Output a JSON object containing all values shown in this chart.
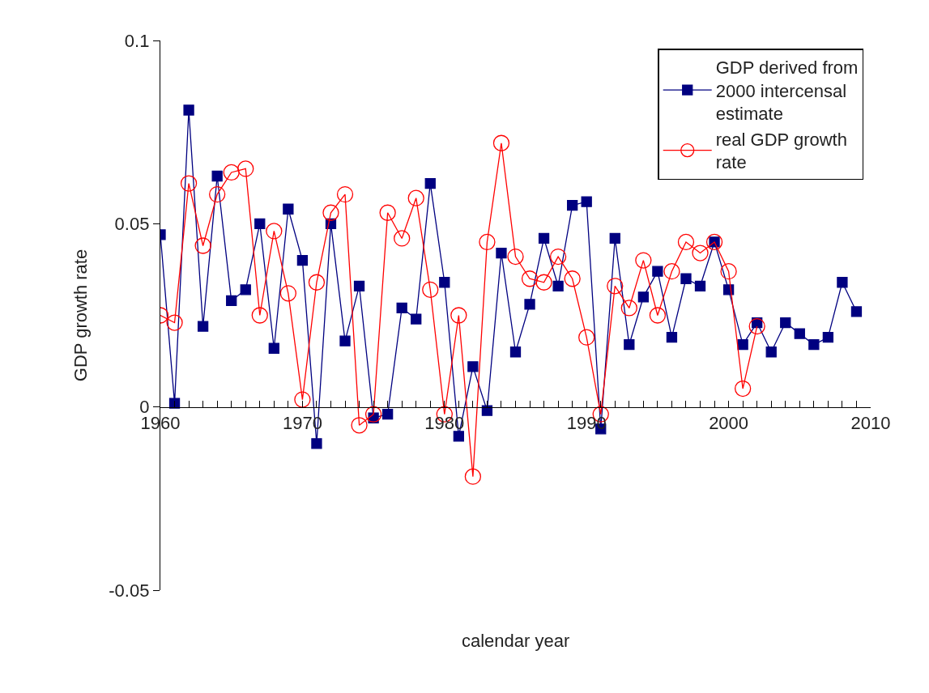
{
  "chart_data": {
    "type": "line",
    "xlabel": "calendar year",
    "ylabel": "GDP growth rate",
    "xlim": [
      1960,
      2010
    ],
    "ylim": [
      -0.05,
      0.1
    ],
    "xticks": [
      1960,
      {
        "value": 1961,
        "label": null
      },
      {
        "value": 1962,
        "label": null
      },
      {
        "value": 1963,
        "label": null
      },
      {
        "value": 1964,
        "label": null
      },
      {
        "value": 1965,
        "label": null
      },
      {
        "value": 1966,
        "label": null
      },
      {
        "value": 1967,
        "label": null
      },
      {
        "value": 1968,
        "label": null
      },
      {
        "value": 1969,
        "label": null
      },
      1970,
      {
        "value": 1971,
        "label": null
      },
      {
        "value": 1972,
        "label": null
      },
      {
        "value": 1973,
        "label": null
      },
      {
        "value": 1974,
        "label": null
      },
      {
        "value": 1975,
        "label": null
      },
      {
        "value": 1976,
        "label": null
      },
      {
        "value": 1977,
        "label": null
      },
      {
        "value": 1978,
        "label": null
      },
      {
        "value": 1979,
        "label": null
      },
      1980,
      {
        "value": 1981,
        "label": null
      },
      {
        "value": 1982,
        "label": null
      },
      {
        "value": 1983,
        "label": null
      },
      {
        "value": 1984,
        "label": null
      },
      {
        "value": 1985,
        "label": null
      },
      {
        "value": 1986,
        "label": null
      },
      {
        "value": 1987,
        "label": null
      },
      {
        "value": 1988,
        "label": null
      },
      {
        "value": 1989,
        "label": null
      },
      1990,
      {
        "value": 1991,
        "label": null
      },
      {
        "value": 1992,
        "label": null
      },
      {
        "value": 1993,
        "label": null
      },
      {
        "value": 1994,
        "label": null
      },
      {
        "value": 1995,
        "label": null
      },
      {
        "value": 1996,
        "label": null
      },
      {
        "value": 1997,
        "label": null
      },
      {
        "value": 1998,
        "label": null
      },
      {
        "value": 1999,
        "label": null
      },
      2000,
      {
        "value": 2001,
        "label": null
      },
      {
        "value": 2002,
        "label": null
      },
      {
        "value": 2003,
        "label": null
      },
      {
        "value": 2004,
        "label": null
      },
      {
        "value": 2005,
        "label": null
      },
      {
        "value": 2006,
        "label": null
      },
      {
        "value": 2007,
        "label": null
      },
      {
        "value": 2008,
        "label": null
      },
      {
        "value": 2009,
        "label": null
      },
      2010
    ],
    "yticks": [
      -0.05,
      0,
      0.05,
      0.1
    ],
    "grid": false,
    "legend": "top right",
    "line_style": "solid",
    "series": [
      {
        "name": "GDP derived from 2000 intercensal estimate",
        "color": "#000080",
        "marker": "square",
        "x": [
          1960,
          1961,
          1962,
          1963,
          1964,
          1965,
          1966,
          1967,
          1968,
          1969,
          1970,
          1971,
          1972,
          1973,
          1974,
          1975,
          1976,
          1977,
          1978,
          1979,
          1980,
          1981,
          1982,
          1983,
          1984,
          1985,
          1986,
          1987,
          1988,
          1989,
          1990,
          1991,
          1992,
          1993,
          1994,
          1995,
          1996,
          1997,
          1998,
          1999,
          2000,
          2001,
          2002,
          2003,
          2004,
          2005,
          2006,
          2007,
          2008,
          2009
        ],
        "values": [
          0.047,
          0.001,
          0.081,
          0.022,
          0.063,
          0.029,
          0.032,
          0.05,
          0.016,
          0.054,
          0.04,
          -0.01,
          0.05,
          0.018,
          0.033,
          -0.003,
          -0.002,
          0.027,
          0.024,
          0.061,
          0.034,
          -0.008,
          0.011,
          -0.001,
          0.042,
          0.015,
          0.028,
          0.046,
          0.033,
          0.055,
          0.056,
          -0.006,
          0.046,
          0.017,
          0.03,
          0.037,
          0.019,
          0.035,
          0.033,
          0.045,
          0.032,
          0.017,
          0.023,
          0.015,
          0.023,
          0.02,
          0.017,
          0.019,
          0.034,
          0.026
        ]
      },
      {
        "name": "real GDP growth rate",
        "color": "#ff0000",
        "marker": "circle",
        "x": [
          1960,
          1961,
          1962,
          1963,
          1964,
          1965,
          1966,
          1967,
          1968,
          1969,
          1970,
          1971,
          1972,
          1973,
          1974,
          1975,
          1976,
          1977,
          1978,
          1979,
          1980,
          1981,
          1982,
          1983,
          1984,
          1985,
          1986,
          1987,
          1988,
          1989,
          1990,
          1991,
          1992,
          1993,
          1994,
          1995,
          1996,
          1997,
          1998,
          1999,
          2000,
          2001,
          2002
        ],
        "values": [
          0.025,
          0.023,
          0.061,
          0.044,
          0.058,
          0.064,
          0.065,
          0.025,
          0.048,
          0.031,
          0.002,
          0.034,
          0.053,
          0.058,
          -0.005,
          -0.002,
          0.053,
          0.046,
          0.057,
          0.032,
          -0.002,
          0.025,
          -0.019,
          0.045,
          0.072,
          0.041,
          0.035,
          0.034,
          0.041,
          0.035,
          0.019,
          -0.002,
          0.033,
          0.027,
          0.04,
          0.025,
          0.037,
          0.045,
          0.042,
          0.045,
          0.037,
          0.005,
          0.022
        ]
      }
    ]
  }
}
